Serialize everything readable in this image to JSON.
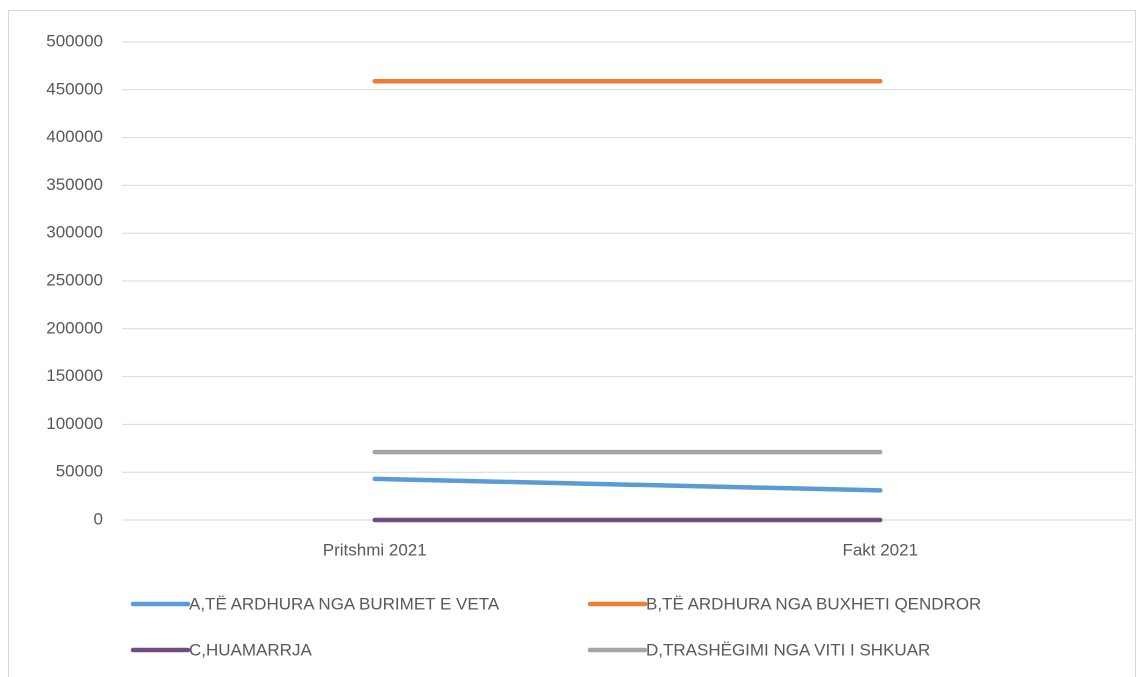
{
  "chart_data": {
    "type": "line",
    "categories": [
      "Pritshmi 2021",
      "Fakt 2021"
    ],
    "series": [
      {
        "name": "A,TË ARDHURA NGA BURIMET E VETA",
        "color": "#5b9bd5",
        "values": [
          43000,
          31000
        ]
      },
      {
        "name": "B,TË ARDHURA NGA BUXHETI QENDROR",
        "color": "#ed7d31",
        "values": [
          459000,
          459000
        ]
      },
      {
        "name": "C,HUAMARRJA",
        "color": "#6f4d7f",
        "values": [
          0,
          0
        ]
      },
      {
        "name": "D,TRASHËGIMI NGA VITI I SHKUAR",
        "color": "#a5a5a5",
        "values": [
          71000,
          71000
        ]
      }
    ],
    "ylim": [
      0,
      500000
    ],
    "yticks": [
      0,
      50000,
      100000,
      150000,
      200000,
      250000,
      300000,
      350000,
      400000,
      450000,
      500000
    ],
    "grid": true,
    "legend": "bottom"
  }
}
